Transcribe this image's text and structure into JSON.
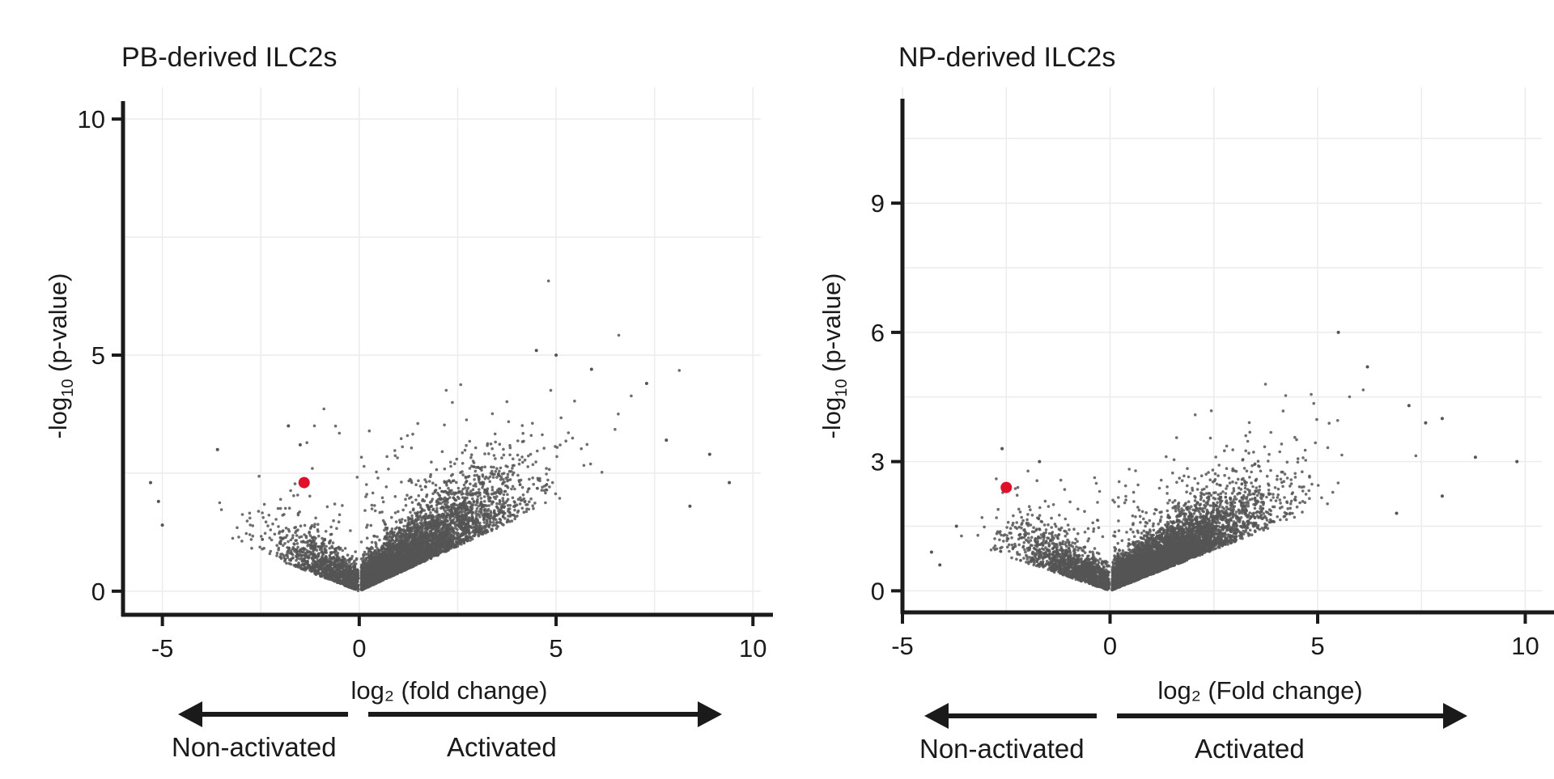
{
  "chart_data": [
    {
      "type": "scatter",
      "title": "PB-derived ILC2s",
      "xlabel": "log₂ (fold change)",
      "ylabel_main": "-log",
      "ylabel_sub": "10",
      "ylabel_rest": " (p-value)",
      "xlim": [
        -6,
        10.2
      ],
      "ylim": [
        -0.5,
        10.5
      ],
      "xticks": [
        -5,
        0,
        5,
        10
      ],
      "yticks": [
        0,
        5,
        10
      ],
      "grid": true,
      "point_color": "#555555",
      "highlight_color": "#e0102a",
      "highlight_point": {
        "x": -1.4,
        "y": 2.3
      },
      "approx_point_count": 6000,
      "extreme_points": [
        {
          "x": -5.3,
          "y": 2.3
        },
        {
          "x": -5.1,
          "y": 1.9
        },
        {
          "x": -5.0,
          "y": 1.4
        },
        {
          "x": -3.6,
          "y": 3.0
        },
        {
          "x": -1.8,
          "y": 3.5
        },
        {
          "x": -1.5,
          "y": 3.1
        },
        {
          "x": 4.5,
          "y": 5.1
        },
        {
          "x": 5.0,
          "y": 5.0
        },
        {
          "x": 5.9,
          "y": 4.7
        },
        {
          "x": 7.3,
          "y": 4.4
        },
        {
          "x": 7.8,
          "y": 3.2
        },
        {
          "x": 8.9,
          "y": 2.9
        },
        {
          "x": 8.4,
          "y": 1.8
        },
        {
          "x": 9.4,
          "y": 2.3
        }
      ],
      "arrow_left_label": "Non-activated",
      "arrow_right_label": "Activated"
    },
    {
      "type": "scatter",
      "title": "NP-derived ILC2s",
      "xlabel": "log₂ (Fold change)",
      "ylabel_main": "-log",
      "ylabel_sub": "10",
      "ylabel_rest": " (p-value)",
      "xlim": [
        -5,
        10.4
      ],
      "ylim": [
        -0.5,
        11.5
      ],
      "xticks": [
        -5,
        0,
        5,
        10
      ],
      "yticks": [
        0,
        3,
        6,
        9
      ],
      "grid": true,
      "point_color": "#555555",
      "highlight_color": "#e0102a",
      "highlight_point": {
        "x": -2.5,
        "y": 2.4
      },
      "approx_point_count": 7000,
      "extreme_points": [
        {
          "x": -4.3,
          "y": 0.9
        },
        {
          "x": -4.1,
          "y": 0.6
        },
        {
          "x": -3.7,
          "y": 1.5
        },
        {
          "x": -2.6,
          "y": 3.3
        },
        {
          "x": -1.7,
          "y": 3.0
        },
        {
          "x": 5.5,
          "y": 6.0
        },
        {
          "x": 6.2,
          "y": 5.2
        },
        {
          "x": 7.2,
          "y": 4.3
        },
        {
          "x": 7.6,
          "y": 3.9
        },
        {
          "x": 8.0,
          "y": 4.0
        },
        {
          "x": 8.8,
          "y": 3.1
        },
        {
          "x": 9.8,
          "y": 3.0
        },
        {
          "x": 8.0,
          "y": 2.2
        },
        {
          "x": 6.9,
          "y": 1.8
        }
      ],
      "arrow_left_label": "Non-activated",
      "arrow_right_label": "Activated"
    }
  ]
}
